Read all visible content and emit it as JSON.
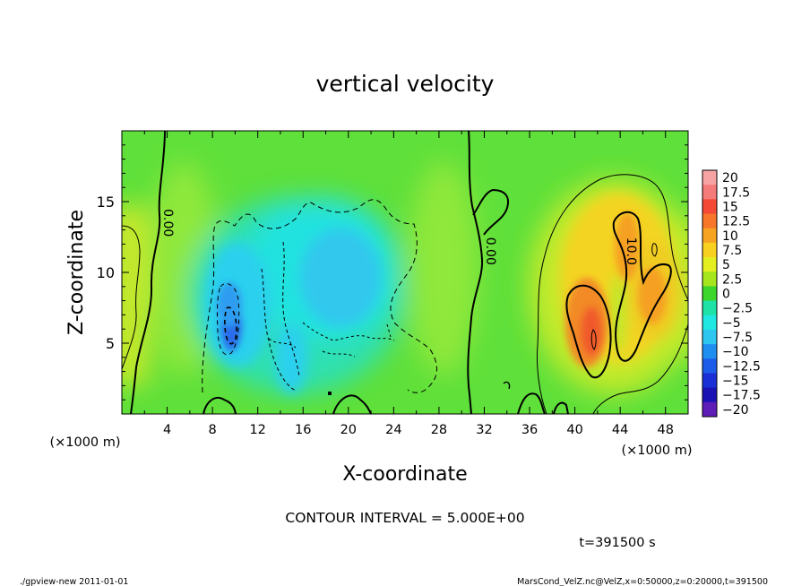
{
  "chart_data": {
    "type": "heatmap",
    "title": "vertical velocity",
    "xlabel": "X-coordinate",
    "ylabel": "Z-coordinate",
    "x_unit_left": "(×1000 m)",
    "x_unit_right": "(×1000 m)",
    "xlim": [
      0,
      50
    ],
    "ylim": [
      0,
      20
    ],
    "x_ticks": [
      4,
      8,
      12,
      16,
      20,
      24,
      28,
      32,
      36,
      40,
      44,
      48
    ],
    "x_minor_step": 2,
    "y_ticks": [
      5,
      10,
      15
    ],
    "y_minor_step": 1,
    "contour_interval_label": "CONTOUR INTERVAL = 5.000E+00",
    "time_label": "t=391500 s",
    "contour_labels": [
      {
        "text": "0.00",
        "x": 4.1,
        "z": 13.5,
        "rotation": 90
      },
      {
        "text": "0.00",
        "x": 32.6,
        "z": 11.5,
        "rotation": 90
      },
      {
        "text": "10.0",
        "x": 45.0,
        "z": 11.5,
        "rotation": 90
      }
    ],
    "colorbar": {
      "labels": [
        "20",
        "17.5",
        "15",
        "12.5",
        "10",
        "7.5",
        "5",
        "2.5",
        "0",
        "−2.5",
        "−5",
        "−7.5",
        "−10",
        "−12.5",
        "−15",
        "−17.5",
        "−20"
      ],
      "colors": [
        "#f7a3a3",
        "#f57a7a",
        "#f44a35",
        "#f8762a",
        "#f5a321",
        "#f8d020",
        "#e3ef20",
        "#a6e61d",
        "#3cd62c",
        "#1fe2a6",
        "#21e7e3",
        "#2cc6ef",
        "#1e8ff0",
        "#1c5ce8",
        "#1a2fd6",
        "#1b12b3",
        "#5e1db6"
      ]
    },
    "features": [
      {
        "kind": "positive-max",
        "x": 42,
        "z": 6,
        "value": 15
      },
      {
        "kind": "positive-max",
        "x": 44.5,
        "z": 11.5,
        "value": 12.5
      },
      {
        "kind": "negative-min",
        "x": 9.8,
        "z": 6,
        "value": -10
      },
      {
        "kind": "negative-area",
        "x": 18,
        "z": 8,
        "value": -5
      },
      {
        "kind": "positive-area",
        "x": 1,
        "z": 9,
        "value": 5
      }
    ]
  },
  "footer": {
    "left": "./gpview-new  2011-01-01",
    "right": "MarsCond_VelZ.nc@VelZ,x=0:50000,z=0:20000,t=391500"
  }
}
